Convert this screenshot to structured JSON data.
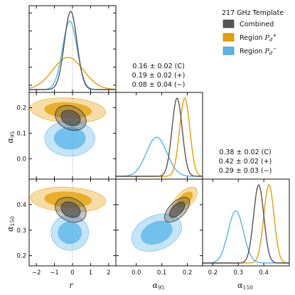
{
  "chart_data": {
    "type": "corner-plot",
    "legend": {
      "title": "217 GHz Template",
      "placement": "top-right",
      "entries": [
        {
          "key": "C",
          "label": "Combined",
          "color": "#555555"
        },
        {
          "key": "P",
          "label": "Region P_d^+",
          "color": "#E69F00"
        },
        {
          "key": "M",
          "label": "Region P_d^−",
          "color": "#56B4E9"
        }
      ]
    },
    "parameters": [
      {
        "name": "r",
        "label": "r",
        "range": [
          -2.4,
          2.4
        ],
        "ticks": [
          -2,
          -1,
          0,
          1,
          2
        ],
        "tick_labels": [
          "−2",
          "−1",
          "0",
          "1",
          "2"
        ],
        "reference": 0
      },
      {
        "name": "alpha_95",
        "label": "α95",
        "range": [
          -0.08,
          0.26
        ],
        "ticks": [
          0.0,
          0.1,
          0.2
        ],
        "tick_labels": [
          "0.0",
          "0.1",
          "0.2"
        ]
      },
      {
        "name": "alpha_150",
        "label": "α150",
        "range": [
          0.16,
          0.5
        ],
        "ticks": [
          0.2,
          0.3,
          0.4
        ],
        "tick_labels": [
          "0.2",
          "0.3",
          "0.4"
        ]
      }
    ],
    "summaries": {
      "alpha_95": [
        "0.16 ± 0.02 (C)",
        "0.19 ± 0.02 (+)",
        "0.08 ± 0.04 (−)"
      ],
      "alpha_150": [
        "0.38 ± 0.02 (C)",
        "0.42 ± 0.02 (+)",
        "0.29 ± 0.03 (−)"
      ]
    },
    "series": [
      {
        "key": "C",
        "name": "Combined",
        "color": "#555555",
        "r": {
          "mean": -0.1,
          "sd": 0.35
        },
        "alpha_95": {
          "mean": 0.16,
          "sd": 0.02
        },
        "alpha_150": {
          "mean": 0.38,
          "sd": 0.02
        }
      },
      {
        "key": "P",
        "name": "Region P_d^+",
        "color": "#E69F00",
        "r": {
          "mean": -0.25,
          "sd": 0.85
        },
        "alpha_95": {
          "mean": 0.19,
          "sd": 0.02
        },
        "alpha_150": {
          "mean": 0.42,
          "sd": 0.02
        }
      },
      {
        "key": "M",
        "name": "Region P_d^−",
        "color": "#56B4E9",
        "r": {
          "mean": -0.15,
          "sd": 0.4
        },
        "alpha_95": {
          "mean": 0.08,
          "sd": 0.04
        },
        "alpha_150": {
          "mean": 0.29,
          "sd": 0.03
        }
      }
    ]
  }
}
